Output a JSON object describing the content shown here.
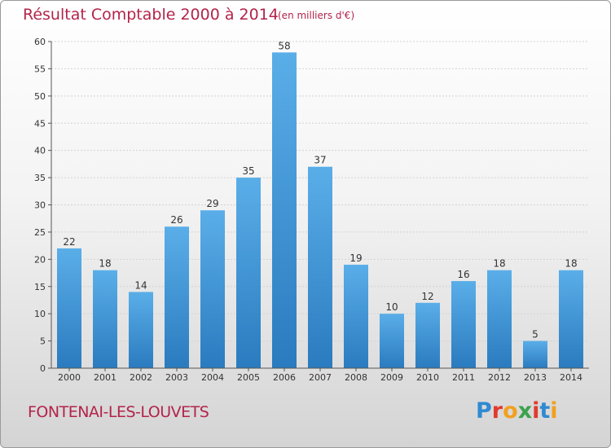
{
  "header": {
    "title": "Résultat Comptable 2000 à 2014",
    "subtitle": "(en milliers d'€)"
  },
  "footer": {
    "commune": "FONTENAI-LES-LOUVETS",
    "logo_text": "Proxiti",
    "logo_colors": [
      "#2f8ad1",
      "#e03b2e",
      "#f2a020",
      "#3aa34a",
      "#e03b2e",
      "#2f8ad1",
      "#f2a020"
    ]
  },
  "chart_data": {
    "type": "bar",
    "title": "Résultat Comptable 2000 à 2014",
    "subtitle": "(en milliers d'€)",
    "xlabel": "",
    "ylabel": "",
    "categories": [
      "2000",
      "2001",
      "2002",
      "2003",
      "2004",
      "2005",
      "2006",
      "2007",
      "2008",
      "2009",
      "2010",
      "2011",
      "2012",
      "2013",
      "2014"
    ],
    "values": [
      22,
      18,
      14,
      26,
      29,
      35,
      58,
      37,
      19,
      10,
      12,
      16,
      18,
      5,
      18
    ],
    "ylim": [
      0,
      60
    ],
    "yticks": [
      0,
      5,
      10,
      15,
      20,
      25,
      30,
      35,
      40,
      45,
      50,
      55,
      60
    ],
    "grid": true,
    "bar_color_top": "#5aaee8",
    "bar_color_bottom": "#2a7bbf"
  }
}
